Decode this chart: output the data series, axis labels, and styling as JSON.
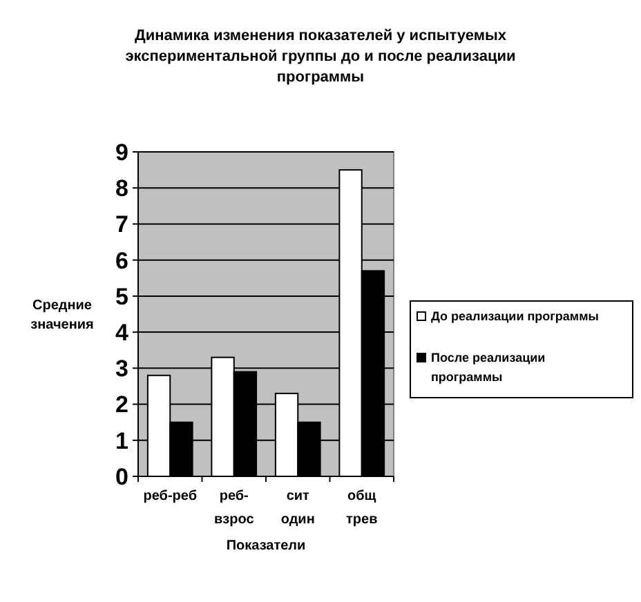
{
  "chart_data": {
    "type": "bar",
    "title": "Динамика изменения показателей у испытуемых экспериментальной группы до и после реализации программы",
    "xlabel": "Показатели",
    "ylabel": "Средние значения",
    "categories": [
      "реб-реб",
      "реб-взрос",
      "сит один",
      "общ трев"
    ],
    "series": [
      {
        "name": "До реализации программы",
        "color": "#ffffff",
        "values": [
          2.8,
          3.3,
          2.3,
          8.5
        ]
      },
      {
        "name": "После реализации программы",
        "color": "#000000",
        "values": [
          1.5,
          2.9,
          1.5,
          5.7
        ]
      }
    ],
    "ylim": [
      0,
      9
    ],
    "yticks": [
      0,
      1,
      2,
      3,
      4,
      5,
      6,
      7,
      8,
      9
    ],
    "grid": "y",
    "legend": "right"
  }
}
